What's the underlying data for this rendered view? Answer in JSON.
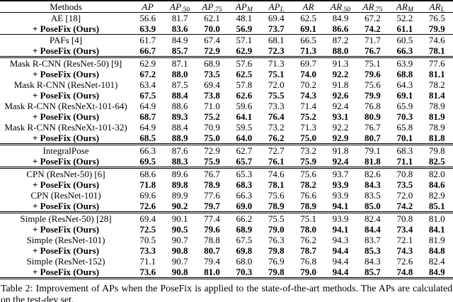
{
  "table": {
    "header": {
      "method_label": "Methods",
      "metrics": [
        {
          "text": "AP",
          "sub": ""
        },
        {
          "text": "AP",
          "sub": ".50"
        },
        {
          "text": "AP",
          "sub": ".75"
        },
        {
          "text": "AP",
          "sub": "M",
          "sub_italic": true
        },
        {
          "text": "AP",
          "sub": "L",
          "sub_italic": true
        },
        {
          "text": "AR",
          "sub": ""
        },
        {
          "text": "AR",
          "sub": ".50"
        },
        {
          "text": "AR",
          "sub": ".75"
        },
        {
          "text": "AR",
          "sub": "M",
          "sub_italic": true
        },
        {
          "text": "AR",
          "sub": "L",
          "sub_italic": true
        }
      ]
    },
    "rows": [
      {
        "method": "AE [18]",
        "bold": false,
        "sep": "none",
        "values": [
          "56.6",
          "81.7",
          "62.1",
          "48.1",
          "69.4",
          "62.5",
          "84.9",
          "67.2",
          "52.2",
          "76.5"
        ]
      },
      {
        "method": "+ PoseFix (Ours)",
        "bold": true,
        "sep": "thin",
        "values": [
          "63.9",
          "83.6",
          "70.0",
          "56.9",
          "73.7",
          "69.1",
          "86.6",
          "74.2",
          "61.1",
          "79.9"
        ]
      },
      {
        "method": "PAFs [4]",
        "bold": false,
        "sep": "none",
        "values": [
          "61.7",
          "84.9",
          "67.4",
          "57.1",
          "68.1",
          "66.5",
          "87.2",
          "71.7",
          "60.5",
          "74.6"
        ]
      },
      {
        "method": "+ PoseFix (Ours)",
        "bold": true,
        "sep": "double",
        "values": [
          "66.7",
          "85.7",
          "72.9",
          "62.9",
          "72.3",
          "71.3",
          "88.0",
          "76.7",
          "66.3",
          "78.1"
        ]
      },
      {
        "method": "Mask R-CNN (ResNet-50) [9]",
        "bold": false,
        "sep": "none",
        "values": [
          "62.9",
          "87.1",
          "68.9",
          "57.6",
          "71.3",
          "69.7",
          "91.3",
          "75.1",
          "63.9",
          "77.6"
        ]
      },
      {
        "method": "+ PoseFix (Ours)",
        "bold": true,
        "sep": "none",
        "values": [
          "67.2",
          "88.0",
          "73.5",
          "62.5",
          "75.1",
          "74.0",
          "92.2",
          "79.6",
          "68.8",
          "81.1"
        ]
      },
      {
        "method": "Mask R-CNN (ResNet-101)",
        "bold": false,
        "sep": "none",
        "values": [
          "63.4",
          "87.5",
          "69.4",
          "57.8",
          "72.0",
          "70.2",
          "91.8",
          "75.6",
          "64.3",
          "78.2"
        ]
      },
      {
        "method": "+ PoseFix (Ours)",
        "bold": true,
        "sep": "none",
        "values": [
          "67.5",
          "88.4",
          "73.8",
          "62.6",
          "75.5",
          "74.3",
          "92.6",
          "79.9",
          "69.1",
          "81.4"
        ]
      },
      {
        "method": "Mask R-CNN (ResNeXt-101-64)",
        "bold": false,
        "sep": "none",
        "values": [
          "64.9",
          "88.6",
          "71.0",
          "59.6",
          "73.3",
          "71.4",
          "92.4",
          "76.8",
          "65.9",
          "78.9"
        ]
      },
      {
        "method": "+ PoseFix (Ours)",
        "bold": true,
        "sep": "none",
        "values": [
          "68.7",
          "89.3",
          "75.2",
          "64.1",
          "76.4",
          "75.2",
          "93.1",
          "80.9",
          "70.3",
          "81.9"
        ]
      },
      {
        "method": "Mask R-CNN (ResNeXt-101-32)",
        "bold": false,
        "sep": "none",
        "values": [
          "64.9",
          "88.4",
          "70.9",
          "59.5",
          "73.2",
          "71.3",
          "92.2",
          "76.7",
          "65.8",
          "78.9"
        ]
      },
      {
        "method": "+ PoseFix (Ours)",
        "bold": true,
        "sep": "double",
        "values": [
          "68.5",
          "88.9",
          "75.0",
          "64.0",
          "76.2",
          "75.0",
          "92.9",
          "80.7",
          "70.1",
          "81.8"
        ]
      },
      {
        "method": "IntegralPose",
        "bold": false,
        "sep": "none",
        "values": [
          "66.3",
          "87.6",
          "72.9",
          "62.7",
          "72.7",
          "73.2",
          "91.8",
          "79.1",
          "68.3",
          "79.8"
        ]
      },
      {
        "method": "+ PoseFix (Ours)",
        "bold": true,
        "sep": "double",
        "values": [
          "69.5",
          "88.3",
          "75.9",
          "65.7",
          "76.1",
          "75.9",
          "92.4",
          "81.8",
          "71.1",
          "82.5"
        ]
      },
      {
        "method": "CPN (ResNet-50) [6]",
        "bold": false,
        "sep": "none",
        "values": [
          "68.6",
          "89.6",
          "76.7",
          "65.3",
          "74.6",
          "75.6",
          "93.7",
          "82.6",
          "70.8",
          "82.0"
        ]
      },
      {
        "method": "+ PoseFix (Ours)",
        "bold": true,
        "sep": "none",
        "values": [
          "71.8",
          "89.8",
          "78.9",
          "68.3",
          "78.1",
          "78.2",
          "93.9",
          "84.3",
          "73.5",
          "84.6"
        ]
      },
      {
        "method": "CPN (ResNet-101)",
        "bold": false,
        "sep": "none",
        "values": [
          "69.6",
          "89.9",
          "77.6",
          "66.3",
          "75.6",
          "76.6",
          "93.9",
          "83.5",
          "72.0",
          "82.9"
        ]
      },
      {
        "method": "+ PoseFix (Ours)",
        "bold": true,
        "sep": "double",
        "values": [
          "72.6",
          "90.2",
          "79.7",
          "69.0",
          "78.9",
          "78.9",
          "94.1",
          "85.0",
          "74.2",
          "85.1"
        ]
      },
      {
        "method": "Simple (ResNet-50) [28]",
        "bold": false,
        "sep": "none",
        "values": [
          "69.4",
          "90.1",
          "77.4",
          "66.2",
          "75.5",
          "75.1",
          "93.9",
          "82.4",
          "70.8",
          "81.0"
        ]
      },
      {
        "method": "+ PoseFix (Ours)",
        "bold": true,
        "sep": "none",
        "values": [
          "72.5",
          "90.5",
          "79.6",
          "68.9",
          "79.0",
          "78.0",
          "94.1",
          "84.4",
          "73.4",
          "84.1"
        ]
      },
      {
        "method": "Simple (ResNet-101)",
        "bold": false,
        "sep": "none",
        "values": [
          "70.5",
          "90.7",
          "78.8",
          "67.5",
          "76.3",
          "76.2",
          "94.3",
          "83.7",
          "72.1",
          "81.9"
        ]
      },
      {
        "method": "+ PoseFix (Ours)",
        "bold": true,
        "sep": "none",
        "values": [
          "73.3",
          "90.8",
          "80.7",
          "69.8",
          "79.8",
          "78.7",
          "94.4",
          "85.3",
          "74.3",
          "84.8"
        ]
      },
      {
        "method": "Simple (ResNet-152)",
        "bold": false,
        "sep": "none",
        "bold_values": [
          6
        ],
        "values": [
          "71.1",
          "90.7",
          "79.4",
          "68.0",
          "76.9",
          "76.8",
          "94.4",
          "84.3",
          "72.6",
          "82.4"
        ]
      },
      {
        "method": "+ PoseFix (Ours)",
        "bold": true,
        "sep": "bottom",
        "values": [
          "73.6",
          "90.8",
          "81.0",
          "70.3",
          "79.8",
          "79.0",
          "94.4",
          "85.7",
          "74.8",
          "84.9"
        ]
      }
    ]
  },
  "caption": {
    "text": "Table 2: Improvement of APs when the PoseFix is applied to the state-of-the-art methods. The APs are calculated on the test-dev set."
  }
}
